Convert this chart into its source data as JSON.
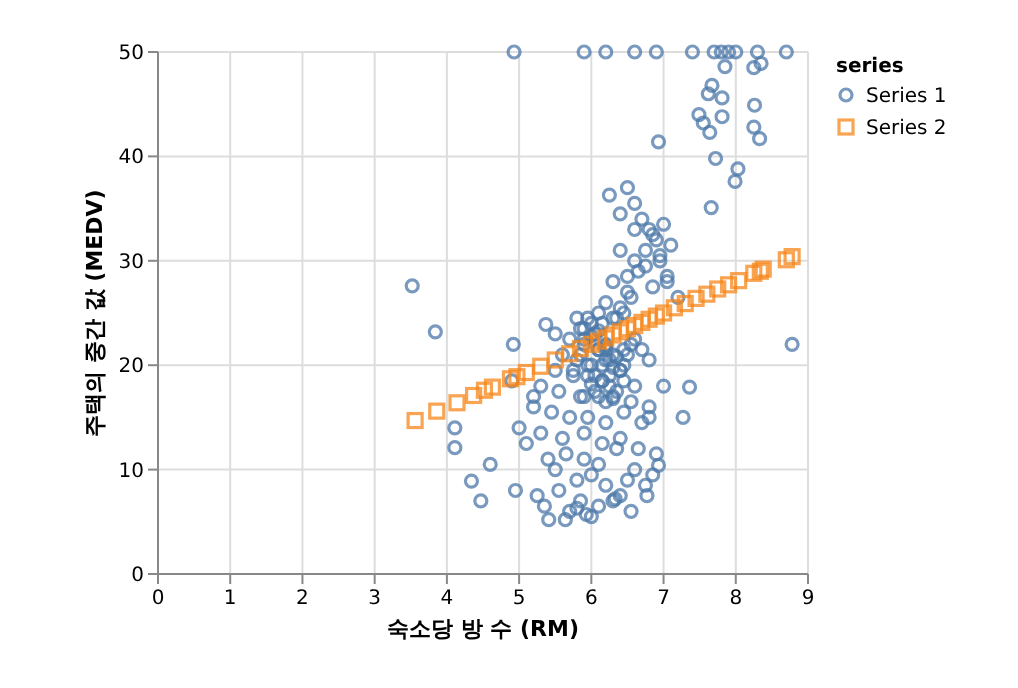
{
  "chart_data": {
    "type": "scatter",
    "xlabel": "숙소당 방 수 (RM)",
    "ylabel": "주택의 중간 값 (MEDV)",
    "legend_title": "series",
    "legend": "top right",
    "grid": true,
    "xlim": [
      0,
      9
    ],
    "ylim": [
      0,
      50
    ],
    "xticks": [
      0,
      1,
      2,
      3,
      4,
      5,
      6,
      7,
      8,
      9
    ],
    "yticks": [
      0,
      10,
      20,
      30,
      40,
      50
    ],
    "series": [
      {
        "name": "Series 1",
        "color": "#4c78a8",
        "marker": "circle",
        "x": [
          4.93,
          5.9,
          6.2,
          6.6,
          6.9,
          7.4,
          7.7,
          7.8,
          7.9,
          8.0,
          8.3,
          8.7,
          7.85,
          8.25,
          8.35,
          7.67,
          7.62,
          7.81,
          8.26,
          7.49,
          7.81,
          7.55,
          7.64,
          8.25,
          8.33,
          6.93,
          7.72,
          8.03,
          7.99,
          7.66,
          6.25,
          3.52,
          3.84,
          8.78,
          4.11,
          4.11,
          4.34,
          4.47,
          4.6,
          5.41,
          5.64,
          5.93,
          5.8,
          6.33,
          6.77,
          6.93,
          7.27,
          7.36,
          4.92,
          5.37,
          6.5,
          6.6,
          6.7,
          6.8,
          6.9,
          7.0,
          7.1,
          6.4,
          6.6,
          6.75,
          6.95,
          7.05,
          6.3,
          6.5,
          6.85,
          7.2,
          6.2,
          6.4,
          6.55,
          6.1,
          6.35,
          5.95,
          6.15,
          6.45,
          6.05,
          5.85,
          6.2,
          5.7,
          5.9,
          6.1,
          6.3,
          5.6,
          5.8,
          6.0,
          6.25,
          6.5,
          5.5,
          5.75,
          5.95,
          6.15,
          6.4,
          6.6,
          5.3,
          5.55,
          5.85,
          6.05,
          6.3,
          6.55,
          6.8,
          5.2,
          5.45,
          5.7,
          5.95,
          6.2,
          6.45,
          6.7,
          5.0,
          5.3,
          5.6,
          5.9,
          6.15,
          6.4,
          6.65,
          6.9,
          5.1,
          5.4,
          5.65,
          5.9,
          6.1,
          6.35,
          6.6,
          6.85,
          5.5,
          5.8,
          6.0,
          6.2,
          6.5,
          6.75,
          4.95,
          5.25,
          5.55,
          5.85,
          6.1,
          6.4,
          5.35,
          5.7,
          6.0,
          6.3,
          6.55,
          5.5,
          5.9,
          6.2,
          6.45,
          4.9,
          5.2,
          6.8,
          7.0,
          5.8,
          5.9,
          6.0,
          6.1,
          6.2,
          6.3,
          6.4,
          5.85,
          5.95,
          6.05,
          6.15,
          6.25,
          6.35,
          5.75,
          6.0,
          6.1,
          6.2,
          6.3,
          6.45,
          6.55,
          5.9,
          6.0,
          6.1,
          6.2,
          6.3,
          6.15,
          6.25,
          6.35,
          6.45,
          6.6,
          6.7,
          6.8,
          6.5,
          6.65,
          6.75,
          6.85,
          6.95,
          7.05,
          6.4,
          6.6
        ],
        "values": [
          50,
          50,
          50,
          50,
          50,
          50,
          50,
          50,
          50,
          50,
          50,
          50,
          48.6,
          48.5,
          48.9,
          46.8,
          46.0,
          45.6,
          44.9,
          44.0,
          43.8,
          43.2,
          42.3,
          42.8,
          41.7,
          41.4,
          39.8,
          38.8,
          37.6,
          35.1,
          36.3,
          27.6,
          23.2,
          22.0,
          14.0,
          12.1,
          8.9,
          7.0,
          10.5,
          5.2,
          5.2,
          5.7,
          6.3,
          7.2,
          7.5,
          10.4,
          15.0,
          17.9,
          22.0,
          23.9,
          37.0,
          35.5,
          34.0,
          33.0,
          32.0,
          33.5,
          31.5,
          31.0,
          30.0,
          29.5,
          30.5,
          28.5,
          28.0,
          27.0,
          27.5,
          26.5,
          26.0,
          25.5,
          26.5,
          25.0,
          24.5,
          24.5,
          24.0,
          25.0,
          23.0,
          23.5,
          22.0,
          22.5,
          22.0,
          21.5,
          21.0,
          21.0,
          20.5,
          20.0,
          20.5,
          21.0,
          19.5,
          19.0,
          19.0,
          18.5,
          19.5,
          18.0,
          18.0,
          17.5,
          17.0,
          17.5,
          17.0,
          16.5,
          16.0,
          16.0,
          15.5,
          15.0,
          15.0,
          14.5,
          15.5,
          14.5,
          14.0,
          13.5,
          13.0,
          13.5,
          12.5,
          13.0,
          12.0,
          11.5,
          12.5,
          11.0,
          11.5,
          11.0,
          10.5,
          12.0,
          10.0,
          9.5,
          10.0,
          9.0,
          9.5,
          8.5,
          9.0,
          8.5,
          8.0,
          7.5,
          8.0,
          7.0,
          6.5,
          7.5,
          6.5,
          6.0,
          5.5,
          7.0,
          6.0,
          23.0,
          22.5,
          21.5,
          20.0,
          18.5,
          17.0,
          15.0,
          18.0,
          24.5,
          23.5,
          22.8,
          21.5,
          20.5,
          19.8,
          19.5,
          21.0,
          20.0,
          19.0,
          18.5,
          18.0,
          17.5,
          19.5,
          24.0,
          23.3,
          21.8,
          24.5,
          21.5,
          22.0,
          17.0,
          18.2,
          17.0,
          16.5,
          16.8,
          20.0,
          19.0,
          20.8,
          18.5,
          22.5,
          21.5,
          20.5,
          28.5,
          29.0,
          31.0,
          32.5,
          30.0,
          28.0,
          34.5,
          33.0
        ]
      },
      {
        "name": "Series 2",
        "color": "#f58518",
        "marker": "square",
        "x": [
          3.56,
          3.86,
          4.14,
          4.37,
          4.52,
          4.63,
          4.88,
          4.97,
          5.1,
          5.3,
          5.5,
          5.7,
          5.85,
          6.0,
          6.1,
          6.2,
          6.3,
          6.4,
          6.5,
          6.6,
          6.7,
          6.8,
          6.9,
          7.0,
          7.15,
          7.3,
          7.45,
          7.6,
          7.75,
          7.9,
          8.04,
          8.25,
          8.34,
          8.38,
          8.7,
          8.78
        ],
        "values": [
          14.7,
          15.6,
          16.4,
          17.1,
          17.6,
          17.9,
          18.7,
          18.9,
          19.3,
          19.9,
          20.5,
          21.1,
          21.6,
          22.0,
          22.3,
          22.6,
          22.9,
          23.2,
          23.5,
          23.8,
          24.1,
          24.4,
          24.7,
          25.0,
          25.5,
          25.9,
          26.4,
          26.8,
          27.3,
          27.7,
          28.1,
          28.8,
          29.0,
          29.2,
          30.1,
          30.4
        ]
      }
    ]
  }
}
